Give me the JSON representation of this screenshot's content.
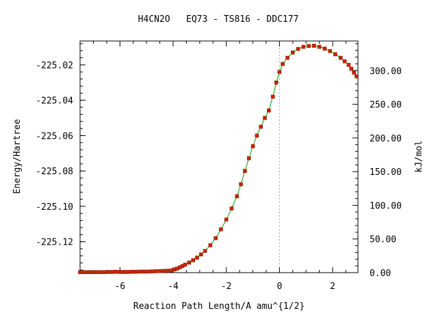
{
  "chart_data": {
    "type": "line",
    "title": "H4CN2O   EQ73 - TS816 - DDC177",
    "xlabel": "Reaction Path Length/A amu^{1/2}",
    "ylabel": "Energy/Hartree",
    "y2label": "kJ/mol",
    "xlim": [
      -7.5,
      2.95
    ],
    "ylim": [
      -225.1375,
      -225.0065
    ],
    "y2lim": [
      0.0,
      343.9
    ],
    "x_ticks": [
      "-6",
      "-4",
      "-2",
      "0",
      "2"
    ],
    "y_ticks": [
      "-225.02",
      "-225.04",
      "-225.06",
      "-225.08",
      "-225.10",
      "-225.12"
    ],
    "y2_ticks": [
      "0.00",
      "50.00",
      "100.00",
      "150.00",
      "200.00",
      "250.00",
      "300.00"
    ],
    "ts_x": 0.0,
    "grid": false,
    "colors": {
      "line": "#00a000",
      "marker": "#cc2200",
      "ts_line": "#a0a0a0",
      "frame": "#000000"
    },
    "series": [
      {
        "x": [
          -7.5,
          -7.35,
          -7.2,
          -7.05,
          -6.9,
          -6.75,
          -6.6,
          -6.45,
          -6.3,
          -6.15,
          -6.0,
          -5.85,
          -5.7,
          -5.55,
          -5.4,
          -5.25,
          -5.1,
          -4.95,
          -4.8,
          -4.65,
          -4.5,
          -4.35,
          -4.2,
          -4.05,
          -3.95,
          -3.85,
          -3.75,
          -3.65,
          -3.55,
          -3.4,
          -3.25,
          -3.1,
          -2.95,
          -2.8,
          -2.6,
          -2.4,
          -2.2,
          -2.0,
          -1.8,
          -1.6,
          -1.45,
          -1.3,
          -1.15,
          -1.0,
          -0.85,
          -0.7,
          -0.55,
          -0.4,
          -0.25,
          -0.12,
          0.0,
          0.12,
          0.3,
          0.5,
          0.7,
          0.9,
          1.1,
          1.3,
          1.5,
          1.7,
          1.9,
          2.1,
          2.3,
          2.45,
          2.6,
          2.7,
          2.8,
          2.9
        ],
        "y": [
          -225.1372,
          -225.1372,
          -225.1372,
          -225.1372,
          -225.1372,
          -225.1372,
          -225.1372,
          -225.1371,
          -225.1371,
          -225.137,
          -225.1371,
          -225.1371,
          -225.1371,
          -225.137,
          -225.137,
          -225.1369,
          -225.1369,
          -225.1369,
          -225.1368,
          -225.1367,
          -225.1366,
          -225.1365,
          -225.1364,
          -225.1362,
          -225.1357,
          -225.1352,
          -225.1345,
          -225.1338,
          -225.133,
          -225.1318,
          -225.1305,
          -225.129,
          -225.1272,
          -225.1252,
          -225.122,
          -225.118,
          -225.113,
          -225.1075,
          -225.1012,
          -225.0943,
          -225.0875,
          -225.08,
          -225.0728,
          -225.066,
          -225.06,
          -225.055,
          -225.05,
          -225.0458,
          -225.038,
          -225.03,
          -225.024,
          -225.0195,
          -225.016,
          -225.013,
          -225.011,
          -225.0098,
          -225.0093,
          -225.0092,
          -225.0098,
          -225.0108,
          -225.0122,
          -225.014,
          -225.016,
          -225.018,
          -225.02,
          -225.0222,
          -225.0244,
          -225.0265
        ]
      }
    ]
  }
}
